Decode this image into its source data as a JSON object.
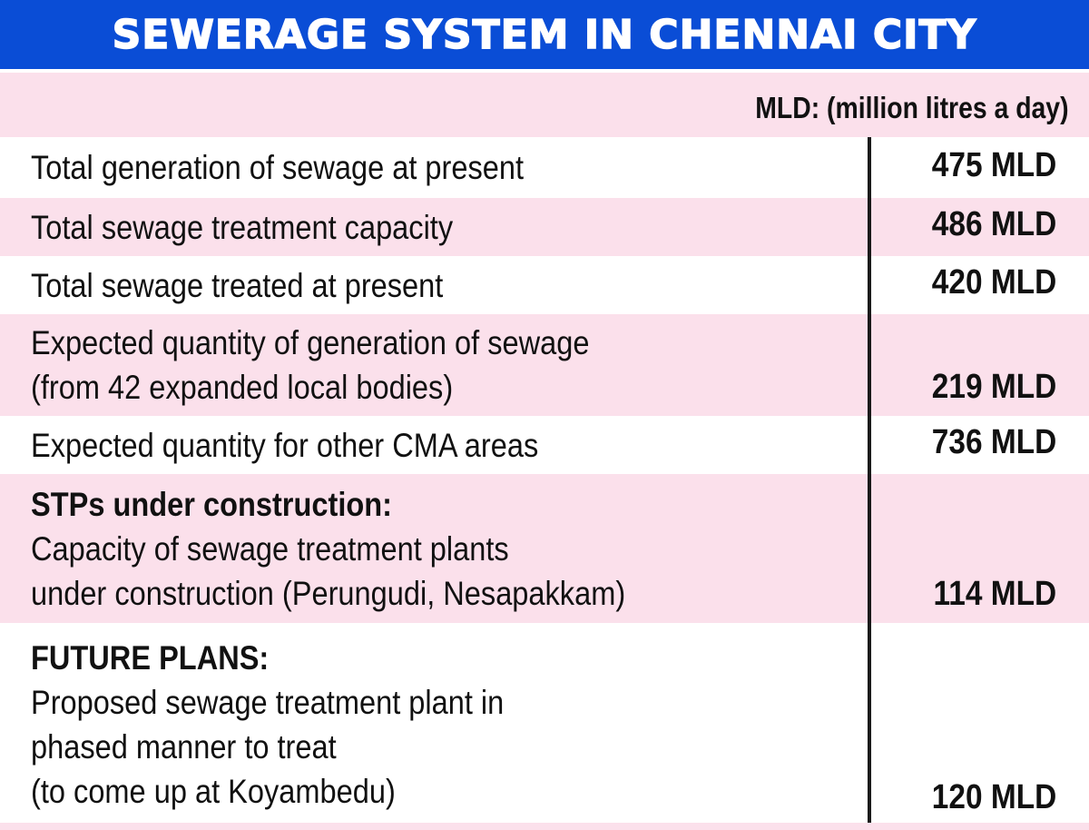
{
  "title": "SEWERAGE SYSTEM IN CHENNAI CITY",
  "unit_note": "MLD: (million litres a day)",
  "colors": {
    "banner": "#0a4dd6",
    "row_pink": "#fbe0eb",
    "row_white": "#ffffff",
    "divider": "#1a1a1a"
  },
  "chart_data": {
    "type": "table",
    "title": "SEWERAGE SYSTEM IN CHENNAI CITY",
    "unit": "MLD: (million litres a day)",
    "rows": [
      {
        "lines": [
          "Total generation of sewage at present"
        ],
        "value": "475 MLD"
      },
      {
        "lines": [
          "Total sewage treatment capacity"
        ],
        "value": "486 MLD"
      },
      {
        "lines": [
          "Total sewage treated at present"
        ],
        "value": "420 MLD"
      },
      {
        "lines": [
          "Expected quantity of generation of sewage",
          "(from 42 expanded local bodies)"
        ],
        "value": "219 MLD"
      },
      {
        "lines": [
          "Expected quantity for other CMA areas"
        ],
        "value": "736 MLD"
      },
      {
        "heading": "STPs under construction:",
        "lines": [
          "Capacity of sewage treatment plants",
          "under construction (Perungudi, Nesapakkam)"
        ],
        "value": "114 MLD"
      },
      {
        "heading": "FUTURE PLANS:",
        "lines": [
          "Proposed sewage treatment plant in",
          "phased manner to treat",
          "(to come up at Koyambedu)"
        ],
        "value": "120 MLD"
      }
    ]
  }
}
